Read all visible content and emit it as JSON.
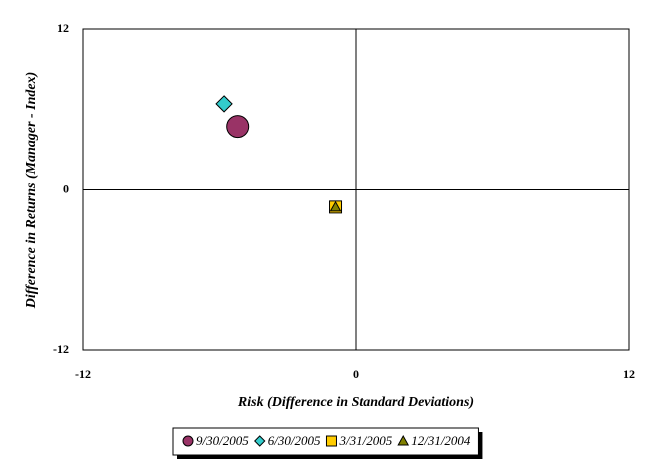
{
  "chart_data": {
    "type": "scatter",
    "x_label": "Risk (Difference in Standard Deviations)",
    "y_label": "Difference in Returns (Manager - Index)",
    "xlim": [
      -12,
      12
    ],
    "xticks": [
      -12,
      0,
      12
    ],
    "ylim": [
      -12,
      12
    ],
    "yticks": [
      -12,
      0,
      12
    ],
    "grid": true,
    "legend": "bottom",
    "series": [
      {
        "name": "9/30/2005",
        "color": "#993366",
        "marker": "circle",
        "x": [
          -5.2
        ],
        "values": [
          4.7
        ]
      },
      {
        "name": "6/30/2005",
        "color": "#33cccc",
        "marker": "diamond",
        "x": [
          -5.8
        ],
        "values": [
          6.4
        ]
      },
      {
        "name": "3/31/2005",
        "color": "#ffcc00",
        "marker": "square",
        "x": [
          -0.9
        ],
        "values": [
          -1.3
        ]
      },
      {
        "name": "12/31/2004",
        "color": "#808000",
        "marker": "triangle",
        "x": [
          -0.9
        ],
        "values": [
          -1.3
        ]
      }
    ]
  }
}
